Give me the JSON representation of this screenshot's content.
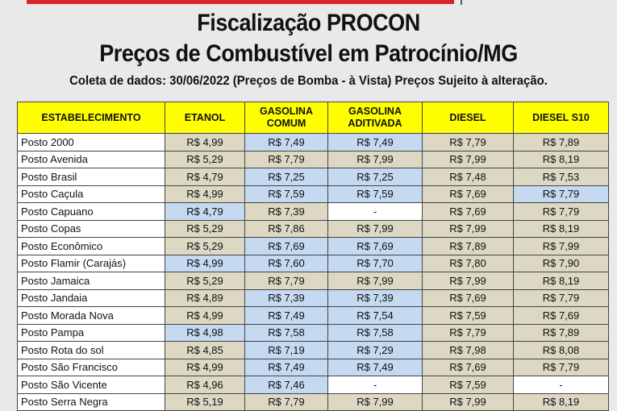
{
  "header": {
    "title_line1": "Fiscalização PROCON",
    "title_line2": "Preços de Combustível em Patrocínio/MG",
    "subtitle": "Coleta de dados: 30/06/2022 (Preços de Bomba - à Vista) Preços Sujeito à alteração."
  },
  "colors": {
    "header_yellow": "#ffff00",
    "cell_tan": "#ddd8c4",
    "cell_blue_lowest": "#c5d9f1",
    "accent_red": "#d8262e"
  },
  "table": {
    "columns": [
      "ESTABELECIMENTO",
      "ETANOL",
      "GASOLINA COMUM",
      "GASOLINA ADITIVADA",
      "DIESEL",
      "DIESEL S10"
    ],
    "rows": [
      {
        "name": "Posto 2000",
        "values": [
          "R$ 4,99",
          "R$ 7,49",
          "R$ 7,49",
          "R$ 7,79",
          "R$ 7,89"
        ],
        "highlight": [
          false,
          true,
          true,
          false,
          false
        ]
      },
      {
        "name": "Posto Avenida",
        "values": [
          "R$ 5,29",
          "R$ 7,79",
          "R$ 7,99",
          "R$ 7,99",
          "R$ 8,19"
        ],
        "highlight": [
          false,
          false,
          false,
          false,
          false
        ]
      },
      {
        "name": "Posto Brasil",
        "values": [
          "R$ 4,79",
          "R$ 7,25",
          "R$ 7,25",
          "R$ 7,48",
          "R$ 7,53"
        ],
        "highlight": [
          false,
          true,
          true,
          false,
          false
        ]
      },
      {
        "name": "Posto Caçula",
        "values": [
          "R$ 4,99",
          "R$ 7,59",
          "R$ 7,59",
          "R$ 7,69",
          "R$ 7,79"
        ],
        "highlight": [
          false,
          true,
          true,
          false,
          true
        ]
      },
      {
        "name": "Posto Capuano",
        "values": [
          "R$ 4,79",
          "R$ 7,39",
          "-",
          "R$ 7,69",
          "R$ 7,79"
        ],
        "highlight": [
          true,
          false,
          false,
          false,
          false
        ]
      },
      {
        "name": "Posto Copas",
        "values": [
          "R$ 5,29",
          "R$ 7,86",
          "R$ 7,99",
          "R$ 7,99",
          "R$ 8,19"
        ],
        "highlight": [
          false,
          false,
          false,
          false,
          false
        ]
      },
      {
        "name": "Posto Econômico",
        "values": [
          "R$ 5,29",
          "R$ 7,69",
          "R$ 7,69",
          "R$ 7,89",
          "R$ 7,99"
        ],
        "highlight": [
          false,
          true,
          true,
          false,
          false
        ]
      },
      {
        "name": "Posto Flamir (Carajás)",
        "values": [
          "R$ 4,99",
          "R$ 7,60",
          "R$ 7,70",
          "R$ 7,80",
          "R$ 7,90"
        ],
        "highlight": [
          true,
          true,
          true,
          false,
          false
        ]
      },
      {
        "name": "Posto Jamaica",
        "values": [
          "R$ 5,29",
          "R$ 7,79",
          "R$ 7,99",
          "R$ 7,99",
          "R$ 8,19"
        ],
        "highlight": [
          false,
          false,
          false,
          false,
          false
        ]
      },
      {
        "name": "Posto Jandaia",
        "values": [
          "R$ 4,89",
          "R$ 7,39",
          "R$ 7,39",
          "R$ 7,69",
          "R$ 7,79"
        ],
        "highlight": [
          false,
          true,
          true,
          false,
          false
        ]
      },
      {
        "name": "Posto Morada Nova",
        "values": [
          "R$ 4,99",
          "R$ 7,49",
          "R$ 7,54",
          "R$ 7,59",
          "R$ 7,69"
        ],
        "highlight": [
          false,
          true,
          true,
          false,
          false
        ]
      },
      {
        "name": "Posto Pampa",
        "values": [
          "R$ 4,98",
          "R$ 7,58",
          "R$ 7,58",
          "R$ 7,79",
          "R$ 7,89"
        ],
        "highlight": [
          true,
          true,
          true,
          false,
          false
        ]
      },
      {
        "name": "Posto Rota do sol",
        "values": [
          "R$ 4,85",
          "R$ 7,19",
          "R$ 7,29",
          "R$ 7,98",
          "R$ 8,08"
        ],
        "highlight": [
          false,
          true,
          true,
          false,
          false
        ]
      },
      {
        "name": "Posto São Francisco",
        "values": [
          "R$ 4,99",
          "R$ 7,49",
          "R$ 7,49",
          "R$ 7,69",
          "R$ 7,79"
        ],
        "highlight": [
          false,
          true,
          true,
          false,
          false
        ]
      },
      {
        "name": "Posto São Vicente",
        "values": [
          "R$ 4,96",
          "R$ 7,46",
          "-",
          "R$ 7,59",
          "-"
        ],
        "highlight": [
          false,
          true,
          false,
          false,
          false
        ]
      },
      {
        "name": "Posto Serra Negra",
        "values": [
          "R$ 5,19",
          "R$ 7,79",
          "R$ 7,99",
          "R$ 7,99",
          "R$ 8,19"
        ],
        "highlight": [
          false,
          false,
          false,
          false,
          false
        ]
      }
    ]
  }
}
